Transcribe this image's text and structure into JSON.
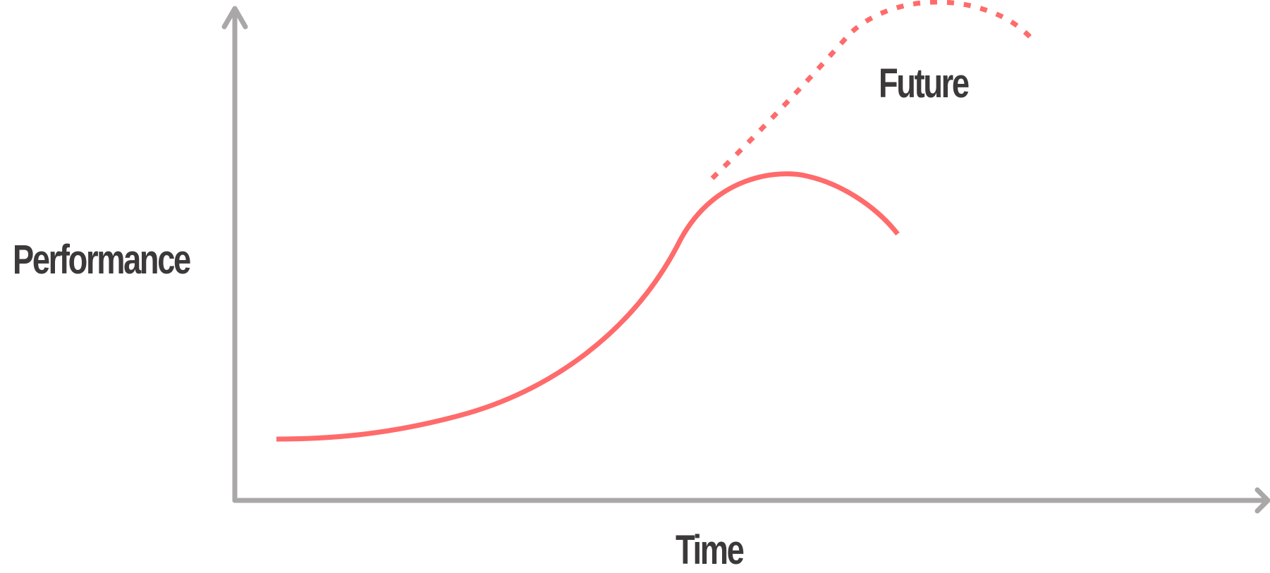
{
  "labels": {
    "y_axis": "Performance",
    "x_axis": "Time",
    "future": "Future"
  },
  "colors": {
    "axis": "#aaa7a7",
    "curve": "#ff6b6b",
    "text": "#3b3939"
  }
}
